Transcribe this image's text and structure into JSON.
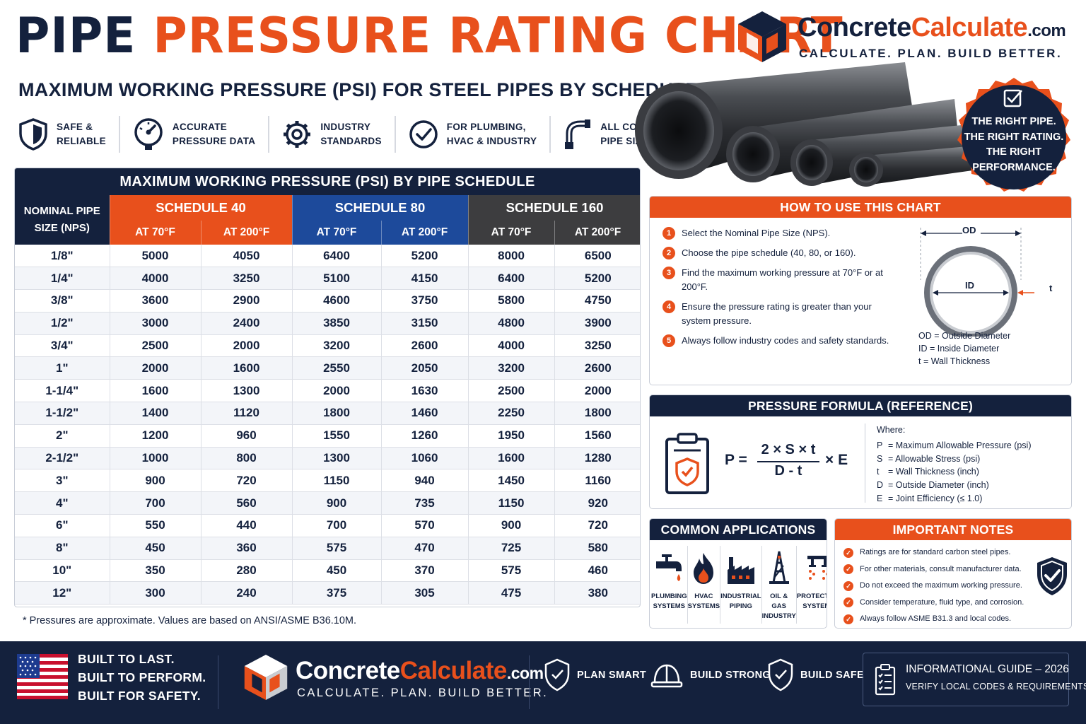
{
  "header": {
    "title_part1": "PIPE",
    "title_part2": "PRESSURE RATING CHART",
    "subtitle": "MAXIMUM WORKING PRESSURE (PSI) FOR STEEL PIPES BY SCHEDULE"
  },
  "brand": {
    "name_part1": "Concrete",
    "name_part2": "Calculate",
    "name_part3": ".com",
    "tagline": "CALCULATE. PLAN. BUILD BETTER."
  },
  "features": [
    {
      "icon": "shield-icon",
      "line1": "SAFE &",
      "line2": "RELIABLE"
    },
    {
      "icon": "gauge-icon",
      "line1": "ACCURATE",
      "line2": "PRESSURE DATA"
    },
    {
      "icon": "gear-icon",
      "line1": "INDUSTRY",
      "line2": "STANDARDS"
    },
    {
      "icon": "check-circle-icon",
      "line1": "FOR PLUMBING,",
      "line2": "HVAC & INDUSTRY"
    },
    {
      "icon": "pipe-fitting-icon",
      "line1": "ALL COMMON",
      "line2": "PIPE SIZES"
    }
  ],
  "badge": {
    "line1": "THE RIGHT PIPE.",
    "line2": "THE RIGHT RATING.",
    "line3": "THE RIGHT",
    "line4": "PERFORMANCE."
  },
  "table": {
    "title": "MAXIMUM WORKING PRESSURE (PSI) BY PIPE SCHEDULE",
    "nps_header_line1": "NOMINAL PIPE",
    "nps_header_line2": "SIZE (NPS)",
    "schedules": [
      "SCHEDULE 40",
      "SCHEDULE 80",
      "SCHEDULE 160"
    ],
    "temps": [
      "AT 70°F",
      "AT 200°F",
      "AT 70°F",
      "AT 200°F",
      "AT 70°F",
      "AT 200°F"
    ],
    "rows": [
      [
        "1/8\"",
        "5000",
        "4050",
        "6400",
        "5200",
        "8000",
        "6500"
      ],
      [
        "1/4\"",
        "4000",
        "3250",
        "5100",
        "4150",
        "6400",
        "5200"
      ],
      [
        "3/8\"",
        "3600",
        "2900",
        "4600",
        "3750",
        "5800",
        "4750"
      ],
      [
        "1/2\"",
        "3000",
        "2400",
        "3850",
        "3150",
        "4800",
        "3900"
      ],
      [
        "3/4\"",
        "2500",
        "2000",
        "3200",
        "2600",
        "4000",
        "3250"
      ],
      [
        "1\"",
        "2000",
        "1600",
        "2550",
        "2050",
        "3200",
        "2600"
      ],
      [
        "1-1/4\"",
        "1600",
        "1300",
        "2000",
        "1630",
        "2500",
        "2000"
      ],
      [
        "1-1/2\"",
        "1400",
        "1120",
        "1800",
        "1460",
        "2250",
        "1800"
      ],
      [
        "2\"",
        "1200",
        "960",
        "1550",
        "1260",
        "1950",
        "1560"
      ],
      [
        "2-1/2\"",
        "1000",
        "800",
        "1300",
        "1060",
        "1600",
        "1280"
      ],
      [
        "3\"",
        "900",
        "720",
        "1150",
        "940",
        "1450",
        "1160"
      ],
      [
        "4\"",
        "700",
        "560",
        "900",
        "735",
        "1150",
        "920"
      ],
      [
        "6\"",
        "550",
        "440",
        "700",
        "570",
        "900",
        "720"
      ],
      [
        "8\"",
        "450",
        "360",
        "575",
        "470",
        "725",
        "580"
      ],
      [
        "10\"",
        "350",
        "280",
        "450",
        "370",
        "575",
        "460"
      ],
      [
        "12\"",
        "300",
        "240",
        "375",
        "305",
        "475",
        "380"
      ]
    ],
    "footnote": "* Pressures are approximate. Values are based on ANSI/ASME B36.10M."
  },
  "howto": {
    "title": "HOW TO USE THIS CHART",
    "steps": [
      {
        "num": "1",
        "text": "Select the Nominal Pipe Size (NPS)."
      },
      {
        "num": "2",
        "text": "Choose the pipe schedule (40, 80, or 160)."
      },
      {
        "num": "3",
        "text": "Find the maximum working pressure at 70°F or at 200°F."
      },
      {
        "num": "4",
        "text": "Ensure the pressure rating is greater than your system pressure."
      },
      {
        "num": "5",
        "text": "Always follow industry codes and safety standards."
      }
    ],
    "diagram": {
      "od_label": "OD",
      "id_label": "ID",
      "t_label": "t",
      "legend": [
        "OD = Outside Diameter",
        "ID = Inside Diameter",
        "t  = Wall Thickness"
      ]
    }
  },
  "formula": {
    "title": "PRESSURE FORMULA (REFERENCE)",
    "lhs": "P =",
    "numerator": "2 × S × t",
    "denominator": "D - t",
    "rhs": "× E",
    "where_label": "Where:",
    "where": [
      {
        "sym": "P",
        "desc": "= Maximum Allowable Pressure (psi)"
      },
      {
        "sym": "S",
        "desc": "= Allowable Stress (psi)"
      },
      {
        "sym": "t",
        "desc": "= Wall Thickness (inch)"
      },
      {
        "sym": "D",
        "desc": "= Outside Diameter (inch)"
      },
      {
        "sym": "E",
        "desc": "= Joint Efficiency (≤ 1.0)"
      }
    ]
  },
  "applications": {
    "title": "COMMON APPLICATIONS",
    "items": [
      {
        "icon": "faucet-icon",
        "line1": "PLUMBING",
        "line2": "SYSTEMS"
      },
      {
        "icon": "flame-icon",
        "line1": "HVAC",
        "line2": "SYSTEMS"
      },
      {
        "icon": "factory-icon",
        "line1": "INDUSTRIAL",
        "line2": "PIPING"
      },
      {
        "icon": "oil-rig-icon",
        "line1": "OIL & GAS",
        "line2": "INDUSTRY"
      },
      {
        "icon": "sprinkler-icon",
        "line1": "PROTECTION",
        "line2": "SYSTEMS"
      }
    ]
  },
  "notes": {
    "title": "IMPORTANT NOTES",
    "items": [
      "Ratings are for standard carbon steel pipes.",
      "For other materials, consult manufacturer data.",
      "Do not exceed the maximum working pressure.",
      "Consider temperature, fluid type, and corrosion.",
      "Always follow ASME B31.3 and local codes."
    ]
  },
  "footer": {
    "built": [
      "BUILT TO LAST.",
      "BUILT TO PERFORM.",
      "BUILT FOR SAFETY."
    ],
    "brand_part1": "Concrete",
    "brand_part2": "Calculate",
    "brand_part3": ".com",
    "tagline": "CALCULATE. PLAN. BUILD BETTER.",
    "items": [
      "PLAN SMART",
      "BUILD STRONG",
      "BUILD SAFE"
    ],
    "guide_line1": "INFORMATIONAL GUIDE – 2026",
    "guide_line2": "VERIFY LOCAL CODES & REQUIREMENTS"
  },
  "colors": {
    "navy": "#14213d",
    "orange": "#e8501c",
    "blue": "#1d4a9b",
    "charcoal": "#3d3d3f"
  }
}
